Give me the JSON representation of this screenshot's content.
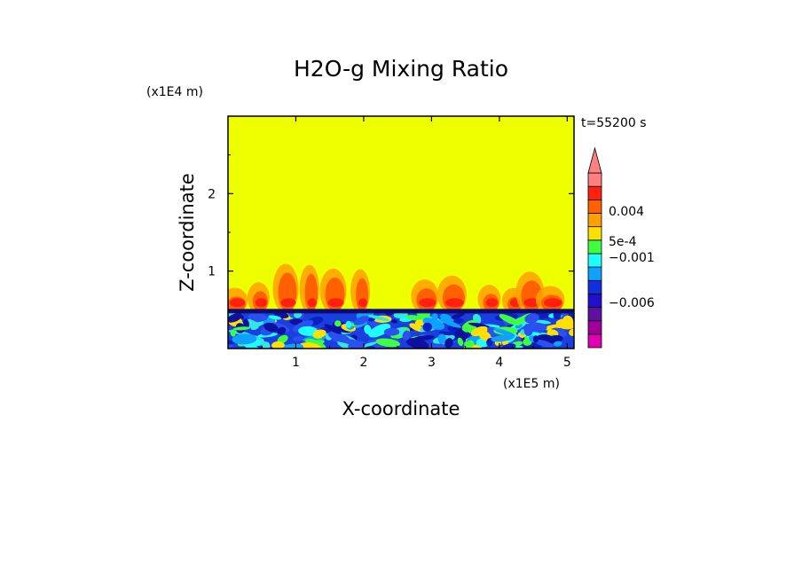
{
  "colors": {
    "background": "#ffffff",
    "field_above": "#eeff00",
    "colorbar": [
      "#e000b0",
      "#a0009a",
      "#6010a0",
      "#2010c8",
      "#1030e0",
      "#10a0ff",
      "#20ffff",
      "#40ff40",
      "#ffe000",
      "#ffa000",
      "#ff6000",
      "#ff2010",
      "#ff8080"
    ]
  },
  "chart_data": {
    "type": "heatmap",
    "title": "H2O-g Mixing Ratio",
    "xlabel": "X-coordinate",
    "ylabel": "Z-coordinate",
    "x_unit": "(x1E5 m)",
    "y_unit": "(x1E4 m)",
    "time_label": "t=55200 s",
    "xlim": [
      0,
      5.1
    ],
    "ylim": [
      0,
      3.0
    ],
    "x_ticks": [
      "1",
      "2",
      "3",
      "4",
      "5"
    ],
    "y_ticks": [
      "1",
      "2"
    ],
    "x_tick_values": [
      1,
      2,
      3,
      4,
      5
    ],
    "y_tick_values": [
      1,
      2
    ],
    "boundary_layer_top": 0.5,
    "colorbar": {
      "labels": [
        "0.004",
        "5e-4",
        "−0.001",
        "−0.006"
      ],
      "label_values": [
        0.004,
        0.0005,
        -0.001,
        -0.006
      ],
      "extend": "max"
    },
    "plumes": [
      0.1,
      0.45,
      0.85,
      1.2,
      1.55,
      1.95,
      2.9,
      3.3,
      3.85,
      4.2,
      4.45,
      4.75
    ]
  }
}
